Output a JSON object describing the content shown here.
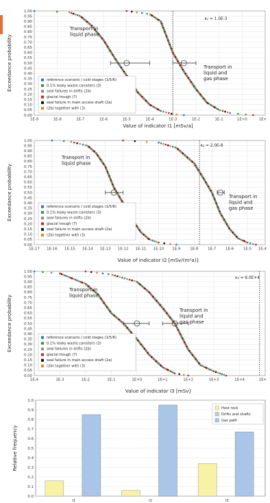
{
  "chart_data": [
    {
      "type": "line",
      "xscale": "log",
      "xlabel": "Value of indicator I1  [mSv/a]",
      "ylabel": "Exceedance probability",
      "x_ticks": [
        "1E-9",
        "1E-8",
        "1E-7",
        "1E-6",
        "1E-5",
        "1E-4",
        "1E-3",
        "1E-2",
        "1E-1",
        "1E+0",
        "1E+"
      ],
      "y_ticks": [
        "0.00",
        "0.05",
        "0.10",
        "0.15",
        "0.20",
        "0.25",
        "0.30",
        "0.35",
        "0.40",
        "0.45",
        "0.50",
        "0.55",
        "0.60",
        "0.65",
        "0.70",
        "0.75",
        "0.80",
        "0.85",
        "0.90",
        "0.95",
        "1.00"
      ],
      "ylim": [
        0,
        1
      ],
      "reference_label": "κ₁ = 1.0E-3",
      "reference_x": 0.001,
      "annotations": [
        "Transport in\nliquid phase",
        "Transport in\nliquid and\ngas phase"
      ],
      "curves": [
        {
          "name": "Transport in liquid phase",
          "x": [
            1e-09,
            3e-08,
            1e-07,
            3e-07,
            1e-06,
            3e-06,
            1e-05,
            3e-05,
            0.0001,
            0.0003,
            0.001,
            0.003
          ],
          "y": [
            1.0,
            0.99,
            0.95,
            0.86,
            0.72,
            0.55,
            0.38,
            0.22,
            0.1,
            0.04,
            0.01,
            0.0
          ]
        },
        {
          "name": "Transport in liquid and gas phase",
          "x": [
            1e-05,
            0.0001,
            0.0003,
            0.001,
            0.003,
            0.01,
            0.03,
            0.1,
            0.3,
            1,
            3
          ],
          "y": [
            1.0,
            0.97,
            0.9,
            0.6,
            0.42,
            0.25,
            0.12,
            0.05,
            0.02,
            0.01,
            0.0
          ]
        }
      ],
      "error_bars": [
        {
          "x": 1e-05,
          "xmin": 2e-06,
          "xmax": 0.0001,
          "y": 0.5
        },
        {
          "x": 0.003,
          "xmin": 0.001,
          "xmax": 0.01,
          "y": 0.5
        }
      ]
    },
    {
      "type": "line",
      "xscale": "log",
      "xlabel": "Value of indicator I2  [mSv/(m²a)]",
      "ylabel": "Exceedance probability",
      "x_ticks": [
        "1E-17",
        "1E-16",
        "1E-15",
        "1E-14",
        "1E-13",
        "1E-12",
        "1E-11",
        "1E-10",
        "1E-9",
        "1E-8",
        "1E-7",
        "1E-6",
        "1E-5",
        "1E-4"
      ],
      "y_ticks": [
        "0.00",
        "0.05",
        "0.10",
        "0.15",
        "0.20",
        "0.25",
        "0.30",
        "0.35",
        "0.40",
        "0.45",
        "0.50",
        "0.55",
        "0.60",
        "0.65",
        "0.70",
        "0.75",
        "0.80",
        "0.85",
        "0.90",
        "0.95",
        "1.00"
      ],
      "ylim": [
        0,
        1
      ],
      "reference_label": "κ₂ = 2.0E-8",
      "reference_x": 2e-08,
      "annotations": [
        "Transport in\nliquid phase",
        "Transport in\nliquid and\ngas phase"
      ],
      "curves": [
        {
          "name": "Transport in liquid phase",
          "x": [
            1e-16,
            1e-15,
            1e-14,
            3e-14,
            1e-13,
            3e-13,
            1e-12,
            3e-12,
            1e-11,
            3e-11,
            1e-10,
            3e-10,
            1e-09
          ],
          "y": [
            1.0,
            0.99,
            0.95,
            0.88,
            0.75,
            0.55,
            0.4,
            0.25,
            0.12,
            0.05,
            0.02,
            0.01,
            0.0
          ]
        },
        {
          "name": "Transport in liquid and gas phase",
          "x": [
            1e-12,
            1e-10,
            1e-09,
            1e-08,
            3e-08,
            1e-07,
            3e-07,
            1e-06,
            3e-06,
            1e-05,
            3e-05
          ],
          "y": [
            1.0,
            0.98,
            0.93,
            0.78,
            0.65,
            0.5,
            0.3,
            0.15,
            0.06,
            0.02,
            0.0
          ]
        }
      ],
      "error_bars": [
        {
          "x": 3e-13,
          "xmin": 1e-13,
          "xmax": 1e-12,
          "y": 0.5
        },
        {
          "x": 3e-07,
          "xmin": 2e-07,
          "xmax": 5e-07,
          "y": 0.5
        }
      ]
    },
    {
      "type": "line",
      "xscale": "log",
      "xlabel": "Value of indicator I3  [mSv]",
      "ylabel": "Exceedance probability",
      "x_ticks": [
        "1E-4",
        "1E-3",
        "1E-2",
        "1E-1",
        "1E+0",
        "1E+1",
        "1E+2",
        "1E+3",
        "1E+4",
        "1E+"
      ],
      "y_ticks": [
        "0.00",
        "0.05",
        "0.10",
        "0.15",
        "0.20",
        "0.25",
        "0.30",
        "0.35",
        "0.40",
        "0.45",
        "0.50",
        "0.55",
        "0.60",
        "0.65",
        "0.70",
        "0.75",
        "0.80",
        "0.85",
        "0.90",
        "0.95",
        "1.00"
      ],
      "ylim": [
        0,
        1
      ],
      "reference_label": "κ₃ = 6.0E+4",
      "reference_x": 60000,
      "annotations": [
        "Transport in\nliquid phase",
        "Transport in\nliquid and\ngas phase"
      ],
      "curves": [
        {
          "name": "Transport in liquid phase",
          "x": [
            0.0001,
            0.001,
            0.01,
            0.03,
            0.1,
            0.3,
            1,
            3,
            10,
            30,
            100
          ],
          "y": [
            1.0,
            0.98,
            0.88,
            0.78,
            0.6,
            0.5,
            0.35,
            0.2,
            0.08,
            0.02,
            0.0
          ]
        },
        {
          "name": "Transport in liquid and gas phase",
          "x": [
            0.01,
            0.1,
            1,
            3,
            10,
            30,
            100,
            300,
            1000,
            3000
          ],
          "y": [
            1.0,
            0.97,
            0.9,
            0.8,
            0.65,
            0.5,
            0.25,
            0.1,
            0.04,
            0.0
          ]
        }
      ],
      "error_bars": [
        {
          "x": 1,
          "xmin": 0.3,
          "xmax": 3,
          "y": 0.5
        },
        {
          "x": 30,
          "xmin": 10,
          "xmax": 100,
          "y": 0.5
        }
      ]
    },
    {
      "type": "bar",
      "ylabel": "Relative frequency",
      "categories": [
        "I1",
        "I2",
        "I3"
      ],
      "y_ticks": [
        "0.0",
        "0.1",
        "0.2",
        "0.3",
        "0.4",
        "0.5",
        "0.6",
        "0.7",
        "0.8",
        "0.9",
        "1.0"
      ],
      "ylim": [
        0,
        1
      ],
      "legend_position": "top-right",
      "series": [
        {
          "name": "Host rock",
          "values": [
            0.16,
            0.06,
            0.34
          ]
        },
        {
          "name": "Drifts and shafts",
          "values": [
            0,
            0,
            0
          ]
        },
        {
          "name": "Gas path",
          "values": [
            0.85,
            0.95,
            0.67
          ]
        }
      ]
    }
  ],
  "legend": {
    "entries": [
      "reference scenario / cold stages (1/5/6)",
      "0.1% leaky waste canisters (3)",
      "seal failures in drifts (2b)",
      "glacial trough (7)",
      "seal failure in main access shaft (2a)",
      "(2b) together with (3)"
    ],
    "colors": [
      "#2e6fc7",
      "#2a9a3a",
      "#8a8a8a",
      "#d62020",
      "#111111",
      "#f07f14"
    ]
  },
  "colors": {
    "grid": "#d9d9d9",
    "axis": "#555555",
    "error_bar": "#555555",
    "host_rock": "#f8f2a6",
    "drifts_and_shafts": "#c8c8c8",
    "gas_path": "#a9c6e8",
    "accent_strip": "#e0703c"
  }
}
